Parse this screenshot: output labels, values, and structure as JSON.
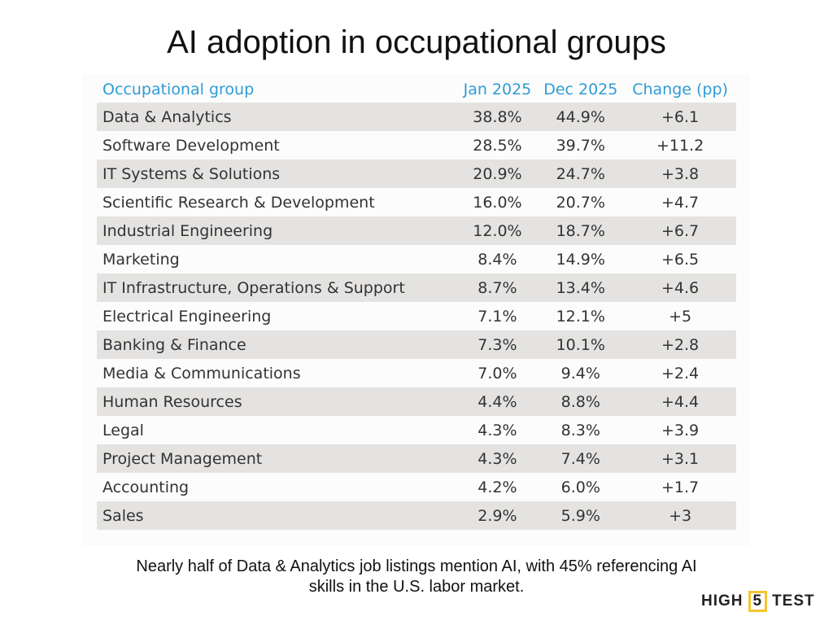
{
  "title": "AI adoption in occupational groups",
  "caption_line1": "Nearly half of Data & Analytics job listings mention AI, with 45% referencing AI",
  "caption_line2": "skills in the U.S. labor market.",
  "logo": {
    "left": "HIGH",
    "middle": "5",
    "right": "TEST"
  },
  "colors": {
    "header": "#2e9cd6",
    "stripe": "#e4e3e2",
    "logo_box": "#f2c62f"
  },
  "chart_data": {
    "type": "table",
    "title": "AI adoption in occupational groups",
    "columns": [
      "Occupational group",
      "Jan 2025",
      "Dec 2025",
      "Change (pp)"
    ],
    "rows": [
      [
        "Data & Analytics",
        "38.8%",
        "44.9%",
        "+6.1"
      ],
      [
        "Software Development",
        "28.5%",
        "39.7%",
        "+11.2"
      ],
      [
        "IT Systems & Solutions",
        "20.9%",
        "24.7%",
        "+3.8"
      ],
      [
        "Scientific Research & Development",
        "16.0%",
        "20.7%",
        "+4.7"
      ],
      [
        "Industrial Engineering",
        "12.0%",
        "18.7%",
        "+6.7"
      ],
      [
        "Marketing",
        "8.4%",
        "14.9%",
        "+6.5"
      ],
      [
        "IT Infrastructure, Operations & Support",
        "8.7%",
        "13.4%",
        "+4.6"
      ],
      [
        "Electrical Engineering",
        "7.1%",
        "12.1%",
        "+5"
      ],
      [
        "Banking & Finance",
        "7.3%",
        "10.1%",
        "+2.8"
      ],
      [
        "Media & Communications",
        "7.0%",
        "9.4%",
        "+2.4"
      ],
      [
        "Human Resources",
        "4.4%",
        "8.8%",
        "+4.4"
      ],
      [
        "Legal",
        "4.3%",
        "8.3%",
        "+3.9"
      ],
      [
        "Project Management",
        "4.3%",
        "7.4%",
        "+3.1"
      ],
      [
        "Accounting",
        "4.2%",
        "6.0%",
        "+1.7"
      ],
      [
        "Sales",
        "2.9%",
        "5.9%",
        "+3"
      ]
    ]
  }
}
